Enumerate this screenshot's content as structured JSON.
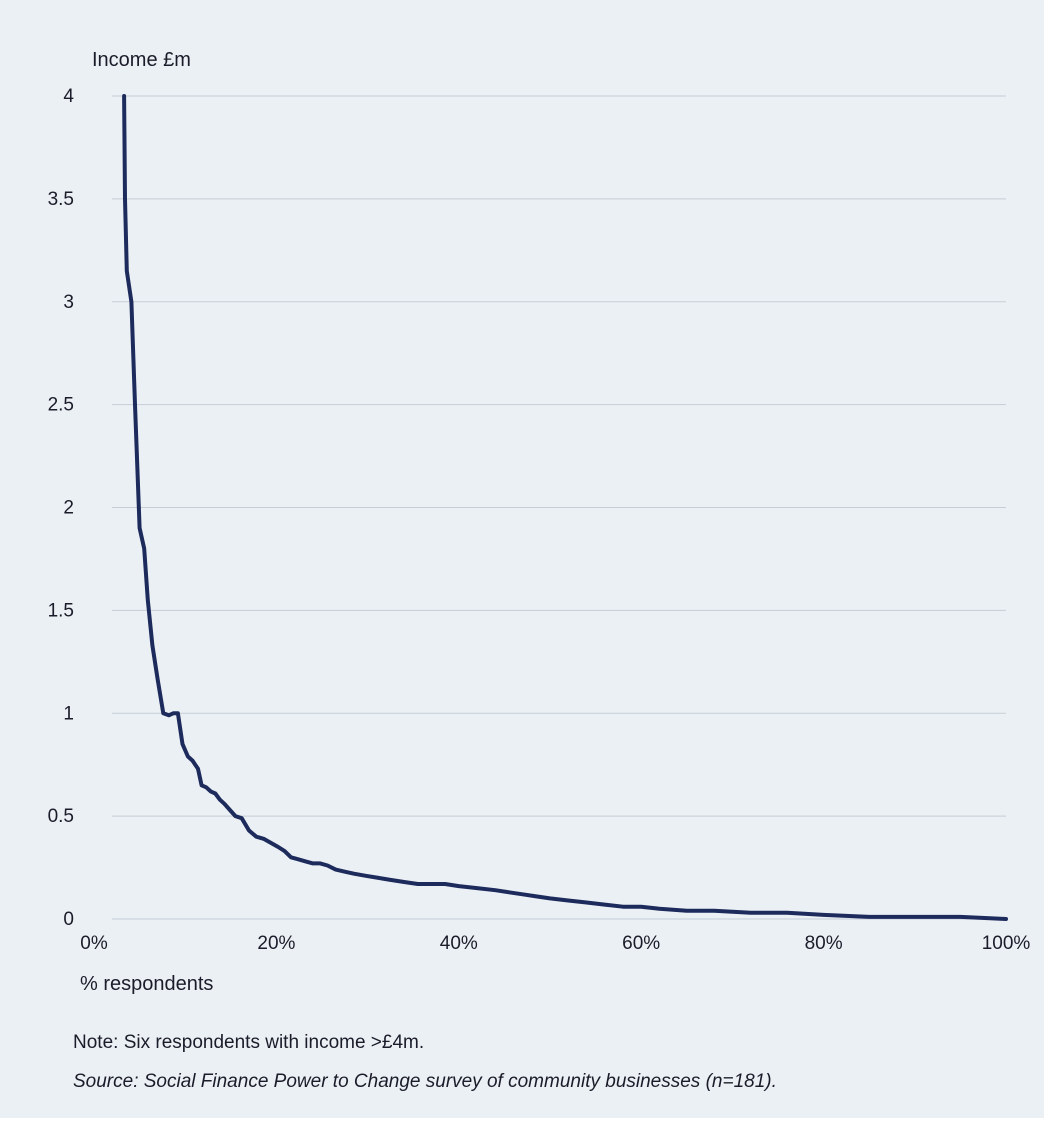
{
  "colors": {
    "background": "#ebf0f4",
    "line": "#1d2a5c",
    "grid": "#c5cdd6",
    "text": "#1b1c2a"
  },
  "chart_data": {
    "type": "line",
    "title": "",
    "ylabel": "Income £m",
    "xlabel": "% respondents",
    "xlim": [
      0,
      100
    ],
    "ylim": [
      0,
      4
    ],
    "x_unit": "%",
    "x_ticks": [
      0,
      20,
      40,
      60,
      80,
      100
    ],
    "x_tick_labels": [
      "0%",
      "20%",
      "40%",
      "60%",
      "80%",
      "100%"
    ],
    "y_ticks": [
      0,
      0.5,
      1,
      1.5,
      2,
      2.5,
      3,
      3.5,
      4
    ],
    "y_tick_labels": [
      "0",
      "0.5",
      "1",
      "1.5",
      "2",
      "2.5",
      "3",
      "3.5",
      "4"
    ],
    "grid": "horizontal",
    "legend": "none",
    "series": [
      {
        "x": [
          3.3,
          3.4,
          3.6,
          4.1,
          4.5,
          5.0,
          5.5,
          5.9,
          6.4,
          7.0,
          7.6,
          8.2,
          8.7,
          9.2,
          9.7,
          10.3,
          10.8,
          11.1,
          11.4,
          11.8,
          12.3,
          12.8,
          13.3,
          13.8,
          14.3,
          14.9,
          15.5,
          16.2,
          17.0,
          17.8,
          18.6,
          19.4,
          20.2,
          20.9,
          21.6,
          22.4,
          23.2,
          24.0,
          24.8,
          25.6,
          26.5,
          27.5,
          28.5,
          29.8,
          31.2,
          32.5,
          34.0,
          35.5,
          37.0,
          38.5,
          40.0,
          42.0,
          44.0,
          45.5,
          47.0,
          48.5,
          50.0,
          52.0,
          54.0,
          56.0,
          58.0,
          60.0,
          62.0,
          65.0,
          68.0,
          72.0,
          76.0,
          80.0,
          85.0,
          90.0,
          95.0,
          100.0
        ],
        "y": [
          4.0,
          3.5,
          3.15,
          3.0,
          2.5,
          1.9,
          1.8,
          1.55,
          1.33,
          1.16,
          1.0,
          0.99,
          1.0,
          1.0,
          0.85,
          0.79,
          0.77,
          0.75,
          0.73,
          0.65,
          0.64,
          0.62,
          0.61,
          0.58,
          0.56,
          0.53,
          0.5,
          0.49,
          0.43,
          0.4,
          0.39,
          0.37,
          0.35,
          0.33,
          0.3,
          0.29,
          0.28,
          0.27,
          0.27,
          0.26,
          0.24,
          0.23,
          0.22,
          0.21,
          0.2,
          0.19,
          0.18,
          0.17,
          0.17,
          0.17,
          0.16,
          0.15,
          0.14,
          0.13,
          0.12,
          0.11,
          0.1,
          0.09,
          0.08,
          0.07,
          0.06,
          0.06,
          0.05,
          0.04,
          0.04,
          0.03,
          0.03,
          0.02,
          0.01,
          0.01,
          0.01,
          0.0
        ]
      }
    ]
  },
  "footer": {
    "note": "Note: Six respondents with income >£4m.",
    "source": "Source: Social Finance Power to Change survey of community businesses (n=181)."
  }
}
